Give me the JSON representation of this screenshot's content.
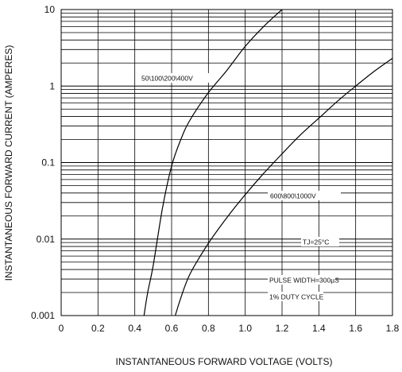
{
  "chart_data": {
    "type": "line",
    "xlabel": "INSTANTANEOUS FORWARD VOLTAGE (VOLTS)",
    "ylabel": "INSTANTANEOUS FORWARD CURRENT (AMPERES)",
    "xlim": [
      0,
      1.8
    ],
    "ylim": [
      0.001,
      10
    ],
    "y_scale": "log",
    "grid": true,
    "x_tick_labels": [
      "0",
      "0.2",
      "0.4",
      "0.6",
      "0.8",
      "1.0",
      "1.2",
      "1.4",
      "1.6",
      "1.8"
    ],
    "y_tick_labels": [
      "0.001",
      "0.01",
      "0.1",
      "1",
      "10"
    ],
    "series": [
      {
        "name": "50\\100\\200\\400V",
        "x": [
          0.45,
          0.47,
          0.5,
          0.55,
          0.6,
          0.65,
          0.7,
          0.8,
          0.9,
          1.0,
          1.1,
          1.2
        ],
        "y": [
          0.001,
          0.002,
          0.0045,
          0.025,
          0.09,
          0.2,
          0.36,
          0.82,
          1.6,
          3.3,
          6.0,
          10
        ]
      },
      {
        "name": "600\\800\\1000V",
        "x": [
          0.62,
          0.65,
          0.7,
          0.8,
          0.9,
          1.0,
          1.1,
          1.2,
          1.3,
          1.4,
          1.5,
          1.6,
          1.7,
          1.8
        ],
        "y": [
          0.001,
          0.0017,
          0.0035,
          0.0088,
          0.019,
          0.038,
          0.072,
          0.13,
          0.23,
          0.38,
          0.63,
          1.0,
          1.55,
          2.3
        ]
      }
    ],
    "annotations": {
      "tj": "TJ=25°C",
      "pulse": "PULSE WIDTH=300µS",
      "duty": "1% DUTY CYCLE"
    }
  }
}
